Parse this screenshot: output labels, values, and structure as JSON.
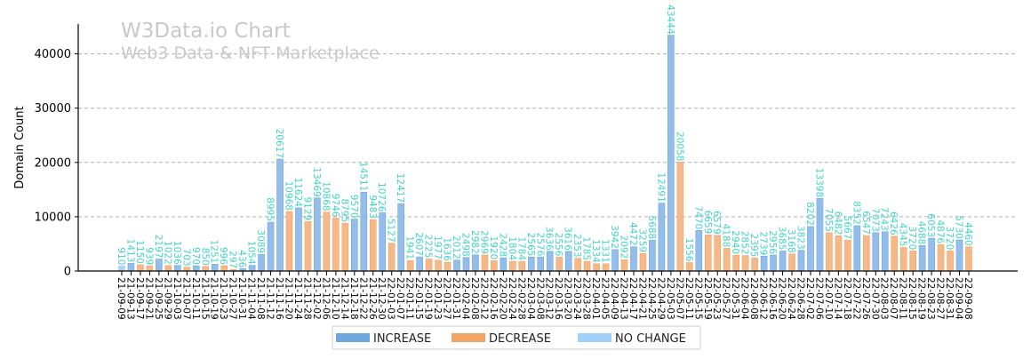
{
  "chart_data": {
    "type": "bar",
    "title": "W3Data.io Chart",
    "subtitle": "Web3 Data & NFT Marketplace",
    "xlabel": "",
    "ylabel": "Domain Count",
    "ylim": [
      0,
      45500
    ],
    "yticks": [
      0,
      10000,
      20000,
      30000,
      40000
    ],
    "grid": true,
    "legend_position": "bottom",
    "colors": {
      "increase": "#94bde9",
      "decrease": "#f5b888",
      "no_change": "#a9d4f7",
      "increase_legend": "#6ea6e0",
      "decrease_legend": "#f2a465",
      "no_change_legend": "#a0cff8",
      "label": "#3fd3c6"
    },
    "legend": [
      {
        "key": "increase",
        "label": "INCREASE"
      },
      {
        "key": "decrease",
        "label": "DECREASE"
      },
      {
        "key": "no_change",
        "label": "NO CHANGE"
      }
    ],
    "categories": [
      "21-09-09",
      "21-09-13",
      "21-09-17",
      "21-09-21",
      "21-09-25",
      "21-09-29",
      "21-10-03",
      "21-10-07",
      "21-10-11",
      "21-10-15",
      "21-10-19",
      "21-10-23",
      "21-10-27",
      "21-10-31",
      "21-11-04",
      "21-11-08",
      "21-11-12",
      "21-11-16",
      "21-11-20",
      "21-11-24",
      "21-11-28",
      "21-12-02",
      "21-12-06",
      "21-12-10",
      "21-12-14",
      "21-12-18",
      "21-12-22",
      "21-12-26",
      "21-12-30",
      "22-01-03",
      "22-01-07",
      "22-01-11",
      "22-01-15",
      "22-01-19",
      "22-01-23",
      "22-01-27",
      "22-01-31",
      "22-02-04",
      "22-02-08",
      "22-02-12",
      "22-02-16",
      "22-02-20",
      "22-02-24",
      "22-02-28",
      "22-03-04",
      "22-03-08",
      "22-03-12",
      "22-03-16",
      "22-03-20",
      "22-03-24",
      "22-03-28",
      "22-04-01",
      "22-04-05",
      "22-04-09",
      "22-04-13",
      "22-04-17",
      "22-04-21",
      "22-04-25",
      "22-04-29",
      "22-05-03",
      "22-05-07",
      "22-05-11",
      "22-05-15",
      "22-05-19",
      "22-05-23",
      "22-05-27",
      "22-05-31",
      "22-06-04",
      "22-06-08",
      "22-06-12",
      "22-06-16",
      "22-06-20",
      "22-06-24",
      "22-06-28",
      "22-07-02",
      "22-07-06",
      "22-07-10",
      "22-07-14",
      "22-07-18",
      "22-07-22",
      "22-07-26",
      "22-07-30",
      "22-08-03",
      "22-08-07",
      "22-08-11",
      "22-08-15",
      "22-08-19",
      "22-08-23",
      "22-08-27",
      "22-08-31",
      "22-09-04",
      "22-09-08"
    ],
    "values": [
      910,
      1413,
      1150,
      939,
      2197,
      1022,
      1036,
      703,
      970,
      850,
      1251,
      996,
      297,
      436,
      1054,
      3089,
      8995,
      20617,
      10968,
      11624,
      9129,
      13469,
      10868,
      9746,
      8795,
      9570,
      14511,
      9483,
      10726,
      5127,
      12417,
      1941,
      2607,
      2225,
      1977,
      1636,
      2012,
      2498,
      2982,
      2969,
      1920,
      2428,
      1804,
      1784,
      2565,
      2576,
      3636,
      2556,
      3616,
      2353,
      1785,
      1334,
      1331,
      3942,
      2092,
      4472,
      3259,
      5688,
      12491,
      43444,
      20058,
      1556,
      7470,
      6659,
      6579,
      4188,
      2940,
      2852,
      2395,
      2739,
      2956,
      3685,
      3168,
      3823,
      8202,
      13398,
      7055,
      6482,
      5667,
      8352,
      6547,
      7073,
      7243,
      6426,
      4345,
      3720,
      4688,
      6053,
      4876,
      3720,
      5730,
      4460
    ],
    "change": [
      "no_change",
      "increase",
      "decrease",
      "decrease",
      "increase",
      "decrease",
      "increase",
      "decrease",
      "increase",
      "decrease",
      "increase",
      "decrease",
      "decrease",
      "increase",
      "increase",
      "increase",
      "increase",
      "increase",
      "decrease",
      "increase",
      "decrease",
      "increase",
      "decrease",
      "decrease",
      "decrease",
      "increase",
      "increase",
      "decrease",
      "increase",
      "decrease",
      "increase",
      "decrease",
      "increase",
      "decrease",
      "decrease",
      "decrease",
      "increase",
      "increase",
      "increase",
      "decrease",
      "decrease",
      "increase",
      "decrease",
      "decrease",
      "increase",
      "increase",
      "increase",
      "decrease",
      "increase",
      "decrease",
      "decrease",
      "decrease",
      "decrease",
      "increase",
      "decrease",
      "increase",
      "decrease",
      "increase",
      "increase",
      "increase",
      "decrease",
      "decrease",
      "increase",
      "decrease",
      "decrease",
      "decrease",
      "decrease",
      "decrease",
      "decrease",
      "increase",
      "increase",
      "increase",
      "decrease",
      "increase",
      "increase",
      "increase",
      "decrease",
      "decrease",
      "decrease",
      "increase",
      "decrease",
      "increase",
      "increase",
      "decrease",
      "decrease",
      "decrease",
      "increase",
      "increase",
      "decrease",
      "decrease",
      "increase",
      "decrease"
    ]
  }
}
